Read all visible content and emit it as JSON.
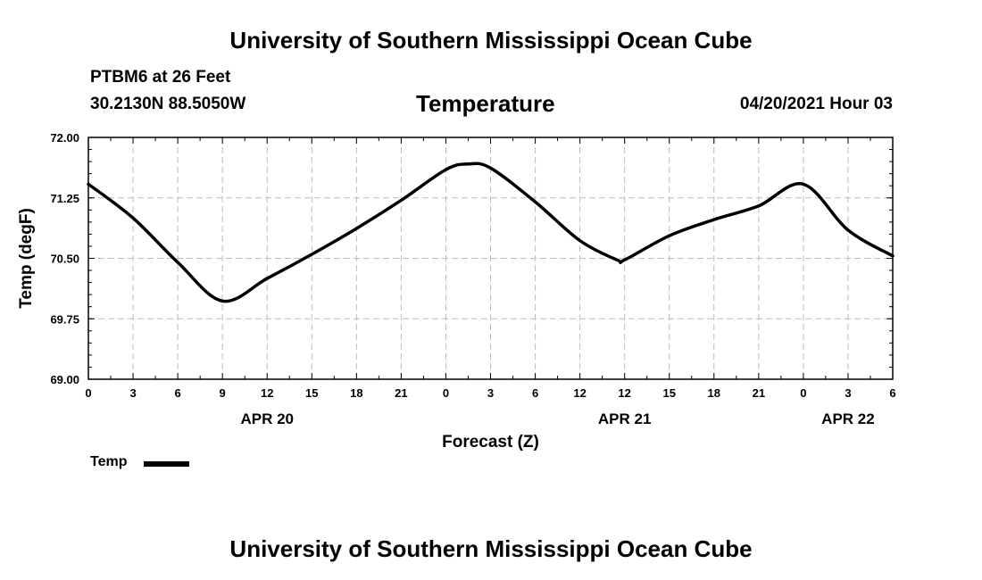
{
  "header": {
    "title": "University of Southern Mississippi Ocean Cube",
    "station": "PTBM6 at 26 Feet",
    "coordinates": "30.2130N  88.5050W",
    "parameter": "Temperature",
    "datetime": "04/20/2021 Hour 03"
  },
  "footer": {
    "title": "University of Southern Mississippi Ocean Cube"
  },
  "chart_data": {
    "type": "line",
    "title": "Temperature",
    "xlabel": "Forecast (Z)",
    "ylabel": "Temp (degF)",
    "xlim": [
      0,
      54
    ],
    "ylim": [
      69.0,
      72.0
    ],
    "grid": true,
    "x_ticks": [
      0,
      3,
      6,
      9,
      12,
      15,
      18,
      21,
      24,
      27,
      30,
      33,
      36,
      39,
      42,
      45,
      48,
      51,
      54
    ],
    "x_tick_labels": [
      "0",
      "3",
      "6",
      "9",
      "12",
      "15",
      "18",
      "21",
      "0",
      "3",
      "6",
      "12",
      "12",
      "15",
      "18",
      "21",
      "0",
      "3",
      "6"
    ],
    "y_ticks": [
      69.0,
      69.75,
      70.5,
      71.25,
      72.0
    ],
    "y_tick_labels": [
      "69.00",
      "69.75",
      "70.50",
      "71.25",
      "72.00"
    ],
    "date_labels": [
      {
        "x": 12,
        "label": "APR 20"
      },
      {
        "x": 36,
        "label": "APR 21"
      },
      {
        "x": 51,
        "label": "APR 22"
      }
    ],
    "series": [
      {
        "name": "Temp",
        "color": "#000000",
        "x": [
          0,
          3,
          6,
          9,
          12,
          15,
          18,
          21,
          24,
          25.5,
          27,
          30,
          33,
          35.5,
          36,
          39,
          42,
          45,
          48,
          51,
          54
        ],
        "y": [
          71.42,
          71.0,
          70.45,
          69.97,
          70.25,
          70.55,
          70.87,
          71.22,
          71.6,
          71.67,
          71.62,
          71.2,
          70.72,
          70.48,
          70.48,
          70.78,
          70.98,
          71.15,
          71.42,
          70.85,
          70.53
        ]
      }
    ],
    "legend": "bottom-left"
  }
}
